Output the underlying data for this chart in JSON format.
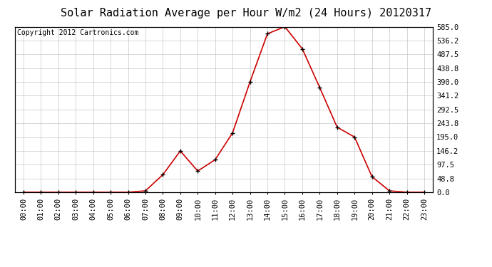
{
  "title": "Solar Radiation Average per Hour W/m2 (24 Hours) 20120317",
  "copyright_text": "Copyright 2012 Cartronics.com",
  "hours": [
    "00:00",
    "01:00",
    "02:00",
    "03:00",
    "04:00",
    "05:00",
    "06:00",
    "07:00",
    "08:00",
    "09:00",
    "10:00",
    "11:00",
    "12:00",
    "13:00",
    "14:00",
    "15:00",
    "16:00",
    "17:00",
    "18:00",
    "19:00",
    "20:00",
    "21:00",
    "22:00",
    "23:00"
  ],
  "values": [
    0,
    0,
    0,
    0,
    0,
    0,
    0,
    5,
    62,
    146,
    75,
    115,
    210,
    390,
    560,
    585,
    507,
    370,
    230,
    195,
    55,
    5,
    0,
    0
  ],
  "line_color": "#cc0000",
  "marker_color": "#000000",
  "bg_color": "#ffffff",
  "grid_color": "#c8c8c8",
  "ylim": [
    0,
    585
  ],
  "yticks": [
    0.0,
    48.8,
    97.5,
    146.2,
    195.0,
    243.8,
    292.5,
    341.2,
    390.0,
    438.8,
    487.5,
    536.2,
    585.0
  ],
  "ytick_labels": [
    "0.0",
    "48.8",
    "97.5",
    "146.2",
    "195.0",
    "243.8",
    "292.5",
    "341.2",
    "390.0",
    "438.8",
    "487.5",
    "536.2",
    "585.0"
  ],
  "title_fontsize": 11,
  "copyright_fontsize": 7,
  "tick_fontsize": 7.5
}
